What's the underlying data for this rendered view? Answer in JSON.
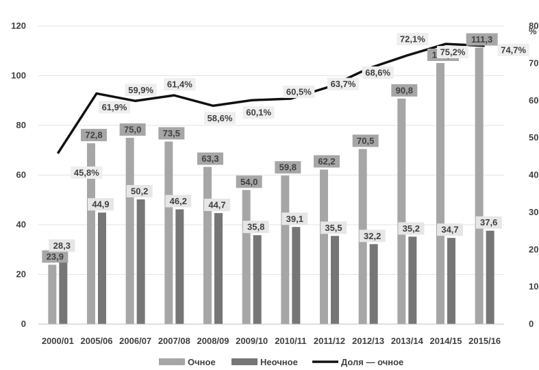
{
  "chart_data": {
    "type": "bar",
    "categories": [
      "2000/01",
      "2005/06",
      "2006/07",
      "2007/08",
      "2008/09",
      "2009/10",
      "2010/11",
      "2011/12",
      "2012/13",
      "2013/14",
      "2014/15",
      "2015/16"
    ],
    "series": [
      {
        "name": "Очное",
        "kind": "bar",
        "axis": "left",
        "color": "#a6a6a6",
        "values": [
          23.9,
          72.8,
          75.0,
          73.5,
          63.3,
          54.0,
          59.8,
          62.2,
          70.5,
          90.8,
          105.1,
          111.3
        ],
        "labels": [
          "23,9",
          "72,8",
          "75,0",
          "73,5",
          "63,3",
          "54,0",
          "59,8",
          "62,2",
          "70,5",
          "90,8",
          "105,1",
          "111,3"
        ]
      },
      {
        "name": "Неочное",
        "kind": "bar",
        "axis": "left",
        "color": "#767676",
        "values": [
          28.3,
          44.9,
          50.2,
          46.2,
          44.7,
          35.8,
          39.1,
          35.5,
          32.2,
          35.2,
          34.7,
          37.6
        ],
        "labels": [
          "28,3",
          "44,9",
          "50,2",
          "46,2",
          "44,7",
          "35,8",
          "39,1",
          "35,5",
          "32,2",
          "35,2",
          "34,7",
          "37,6"
        ]
      },
      {
        "name": "Доля — очное",
        "kind": "line",
        "axis": "right",
        "color": "#111111",
        "values": [
          45.8,
          61.9,
          59.9,
          61.4,
          58.6,
          60.1,
          60.5,
          63.7,
          68.6,
          72.1,
          75.2,
          74.7
        ],
        "labels": [
          "45,8%",
          "61,9%",
          "59,9%",
          "61,4%",
          "58,6%",
          "60,1%",
          "60,5%",
          "63,7%",
          "68,6%",
          "72,1%",
          "75,2%",
          "74,7%"
        ]
      }
    ],
    "y_left": {
      "min": 0,
      "max": 120,
      "ticks": [
        "0",
        "20",
        "40",
        "60",
        "80",
        "100",
        "120"
      ]
    },
    "y_right": {
      "min": 0,
      "max": 80,
      "unit": "%",
      "ticks": [
        "0",
        "10",
        "20",
        "30",
        "40",
        "50",
        "60",
        "70",
        "80"
      ]
    },
    "grid": true,
    "legend_position": "bottom"
  }
}
